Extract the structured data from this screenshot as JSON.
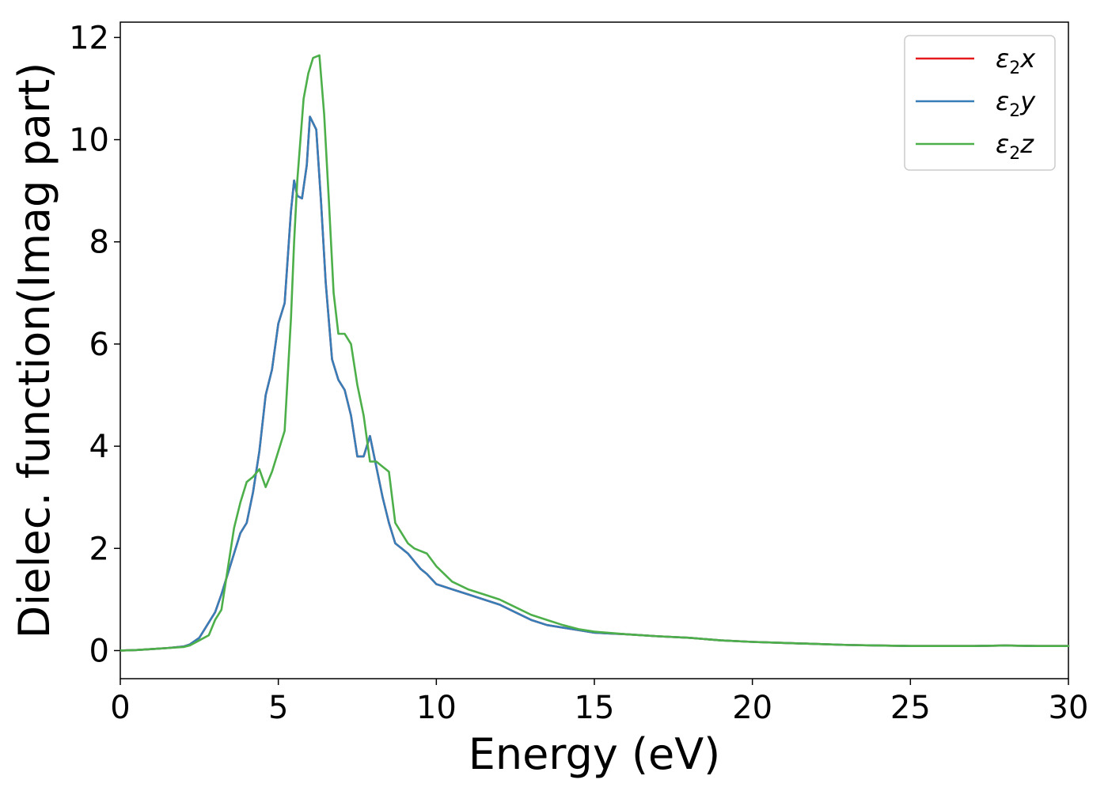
{
  "chart_data": {
    "type": "line",
    "title": "",
    "xlabel": "Energy (eV)",
    "ylabel": "Dielec. function(Imag part)",
    "xlim": [
      0,
      30
    ],
    "ylim": [
      -0.55,
      12.3
    ],
    "xticks": [
      0,
      5,
      10,
      15,
      20,
      25,
      30
    ],
    "yticks": [
      0,
      2,
      4,
      6,
      8,
      10,
      12
    ],
    "xtick_labels": [
      "0",
      "5",
      "10",
      "15",
      "20",
      "25",
      "30"
    ],
    "ytick_labels": [
      "0",
      "2",
      "4",
      "6",
      "8",
      "10",
      "12"
    ],
    "grid": false,
    "legend": {
      "placement": "top-right",
      "entries": [
        {
          "base": "ε",
          "sub": "2",
          "suffix": "x",
          "color": "#e41a1c"
        },
        {
          "base": "ε",
          "sub": "2",
          "suffix": "y",
          "color": "#377eb8"
        },
        {
          "base": "ε",
          "sub": "2",
          "suffix": "z",
          "color": "#4daf4a"
        }
      ]
    },
    "series": [
      {
        "name": "ε2x",
        "color": "#e41a1c",
        "x": [
          0,
          0.5,
          1,
          1.5,
          2,
          2.2,
          2.5,
          2.8,
          3,
          3.2,
          3.4,
          3.6,
          3.8,
          4,
          4.2,
          4.4,
          4.6,
          4.8,
          5,
          5.2,
          5.4,
          5.5,
          5.6,
          5.75,
          5.9,
          6,
          6.2,
          6.35,
          6.5,
          6.7,
          6.9,
          7.1,
          7.3,
          7.5,
          7.7,
          7.9,
          8.1,
          8.3,
          8.5,
          8.7,
          8.9,
          9.1,
          9.3,
          9.5,
          9.7,
          10,
          10.5,
          11,
          11.5,
          12,
          12.5,
          13,
          13.5,
          14,
          14.5,
          15,
          16,
          17,
          18,
          19,
          20,
          21,
          22,
          23,
          24,
          25,
          26,
          27,
          28,
          29,
          30
        ],
        "y": [
          0,
          0.01,
          0.03,
          0.05,
          0.08,
          0.12,
          0.25,
          0.55,
          0.75,
          1.1,
          1.5,
          1.9,
          2.3,
          2.5,
          3.1,
          3.9,
          5,
          5.5,
          6.4,
          6.8,
          8.6,
          9.2,
          8.9,
          8.85,
          9.5,
          10.45,
          10.2,
          8.8,
          7.2,
          5.7,
          5.3,
          5.1,
          4.6,
          3.8,
          3.8,
          4.2,
          3.6,
          3,
          2.5,
          2.1,
          2,
          1.9,
          1.75,
          1.6,
          1.5,
          1.3,
          1.2,
          1.1,
          1,
          0.9,
          0.75,
          0.6,
          0.5,
          0.45,
          0.4,
          0.35,
          0.32,
          0.28,
          0.25,
          0.2,
          0.17,
          0.15,
          0.13,
          0.11,
          0.1,
          0.09,
          0.09,
          0.09,
          0.1,
          0.09,
          0.09
        ]
      },
      {
        "name": "ε2y",
        "color": "#377eb8",
        "x": [
          0,
          0.5,
          1,
          1.5,
          2,
          2.2,
          2.5,
          2.8,
          3,
          3.2,
          3.4,
          3.6,
          3.8,
          4,
          4.2,
          4.4,
          4.6,
          4.8,
          5,
          5.2,
          5.4,
          5.5,
          5.6,
          5.75,
          5.9,
          6,
          6.2,
          6.35,
          6.5,
          6.7,
          6.9,
          7.1,
          7.3,
          7.5,
          7.7,
          7.9,
          8.1,
          8.3,
          8.5,
          8.7,
          8.9,
          9.1,
          9.3,
          9.5,
          9.7,
          10,
          10.5,
          11,
          11.5,
          12,
          12.5,
          13,
          13.5,
          14,
          14.5,
          15,
          16,
          17,
          18,
          19,
          20,
          21,
          22,
          23,
          24,
          25,
          26,
          27,
          28,
          29,
          30
        ],
        "y": [
          0,
          0.01,
          0.03,
          0.05,
          0.08,
          0.12,
          0.25,
          0.55,
          0.75,
          1.1,
          1.5,
          1.9,
          2.3,
          2.5,
          3.1,
          3.9,
          5,
          5.5,
          6.4,
          6.8,
          8.6,
          9.2,
          8.9,
          8.85,
          9.5,
          10.45,
          10.2,
          8.8,
          7.2,
          5.7,
          5.3,
          5.1,
          4.6,
          3.8,
          3.8,
          4.2,
          3.6,
          3,
          2.5,
          2.1,
          2,
          1.9,
          1.75,
          1.6,
          1.5,
          1.3,
          1.2,
          1.1,
          1,
          0.9,
          0.75,
          0.6,
          0.5,
          0.45,
          0.4,
          0.35,
          0.32,
          0.28,
          0.25,
          0.2,
          0.17,
          0.15,
          0.13,
          0.11,
          0.1,
          0.09,
          0.09,
          0.09,
          0.1,
          0.09,
          0.09
        ]
      },
      {
        "name": "ε2z",
        "color": "#4daf4a",
        "x": [
          0,
          0.5,
          1,
          1.5,
          2,
          2.2,
          2.5,
          2.8,
          3,
          3.2,
          3.4,
          3.6,
          3.8,
          4,
          4.2,
          4.4,
          4.6,
          4.8,
          5,
          5.2,
          5.4,
          5.5,
          5.6,
          5.8,
          5.95,
          6.1,
          6.3,
          6.45,
          6.6,
          6.75,
          6.9,
          7.1,
          7.3,
          7.5,
          7.7,
          7.9,
          8.1,
          8.3,
          8.5,
          8.7,
          8.9,
          9.1,
          9.3,
          9.5,
          9.7,
          10,
          10.5,
          11,
          11.5,
          12,
          12.5,
          13,
          13.5,
          14,
          14.5,
          15,
          16,
          17,
          18,
          19,
          20,
          21,
          22,
          23,
          24,
          25,
          26,
          27,
          28,
          29,
          30
        ],
        "y": [
          0,
          0.01,
          0.03,
          0.05,
          0.07,
          0.1,
          0.2,
          0.3,
          0.6,
          0.8,
          1.6,
          2.4,
          2.9,
          3.3,
          3.4,
          3.55,
          3.2,
          3.5,
          3.9,
          4.3,
          6.5,
          8,
          9.2,
          10.8,
          11.3,
          11.6,
          11.65,
          10.5,
          8.8,
          7,
          6.2,
          6.2,
          6,
          5.2,
          4.6,
          3.7,
          3.7,
          3.6,
          3.5,
          2.5,
          2.3,
          2.1,
          2,
          1.95,
          1.9,
          1.65,
          1.35,
          1.2,
          1.1,
          1,
          0.85,
          0.7,
          0.6,
          0.5,
          0.42,
          0.37,
          0.32,
          0.28,
          0.25,
          0.2,
          0.17,
          0.15,
          0.13,
          0.11,
          0.1,
          0.09,
          0.09,
          0.09,
          0.1,
          0.09,
          0.09
        ]
      }
    ]
  }
}
